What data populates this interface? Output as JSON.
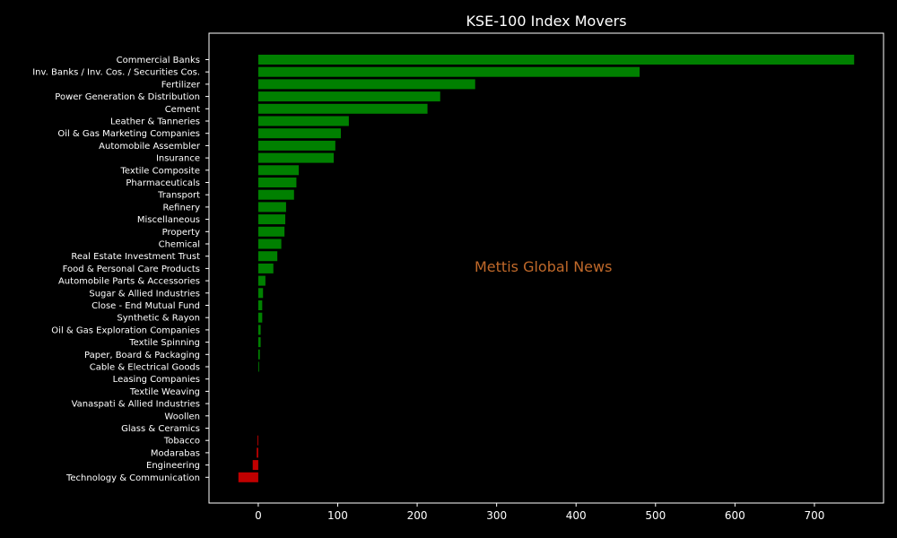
{
  "chart_data": {
    "type": "bar",
    "orientation": "horizontal",
    "title": "KSE-100 Index Movers",
    "xlabel": "",
    "ylabel": "",
    "xlim": [
      -62,
      787
    ],
    "xticks": [
      0,
      100,
      200,
      300,
      400,
      500,
      600,
      700
    ],
    "grid": false,
    "legend": "none",
    "categories": [
      "Commercial Banks",
      "Inv. Banks / Inv. Cos. / Securities Cos.",
      "Fertilizer",
      "Power Generation & Distribution",
      "Cement",
      "Leather & Tanneries",
      "Oil & Gas Marketing Companies",
      "Automobile Assembler",
      "Insurance",
      "Textile Composite",
      "Pharmaceuticals",
      "Transport",
      "Refinery",
      "Miscellaneous",
      "Property",
      "Chemical",
      "Real Estate Investment Trust",
      "Food & Personal Care Products",
      "Automobile Parts & Accessories",
      "Sugar & Allied Industries",
      "Close - End Mutual Fund",
      "Synthetic & Rayon",
      "Oil & Gas Exploration Companies",
      "Textile Spinning",
      "Paper, Board & Packaging",
      "Cable & Electrical Goods",
      "Leasing Companies",
      "Textile Weaving",
      "Vanaspati & Allied Industries",
      "Woollen",
      "Glass & Ceramics",
      "Tobacco",
      "Modarabas",
      "Engineering",
      "Technology & Communication"
    ],
    "values": [
      750,
      480,
      273,
      229,
      213,
      114,
      104,
      97,
      95,
      51,
      48,
      45,
      35,
      34,
      33,
      29,
      24,
      19,
      9,
      6,
      5,
      5,
      3,
      3,
      2,
      1,
      0,
      0,
      0,
      0,
      0,
      -1,
      -2,
      -7,
      -25
    ],
    "colors": {
      "positive": "#008000",
      "negative": "#c00000",
      "background": "#000000",
      "axes": "#ffffff",
      "text": "#ffffff"
    }
  },
  "watermark": "Mettis Global News"
}
